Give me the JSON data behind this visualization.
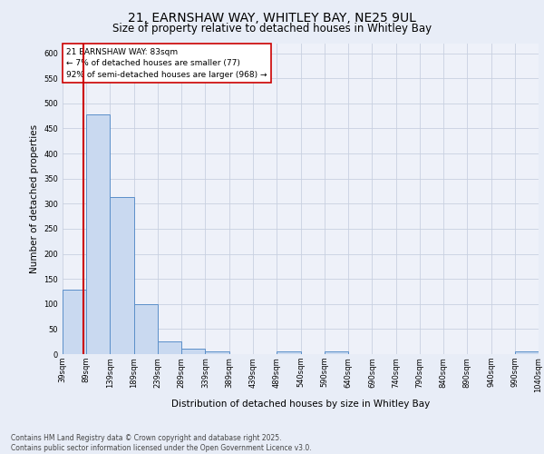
{
  "title_line1": "21, EARNSHAW WAY, WHITLEY BAY, NE25 9UL",
  "title_line2": "Size of property relative to detached houses in Whitley Bay",
  "xlabel": "Distribution of detached houses by size in Whitley Bay",
  "ylabel": "Number of detached properties",
  "footer_line1": "Contains HM Land Registry data © Crown copyright and database right 2025.",
  "footer_line2": "Contains public sector information licensed under the Open Government Licence v3.0.",
  "annotation_line1": "21 EARNSHAW WAY: 83sqm",
  "annotation_line2": "← 7% of detached houses are smaller (77)",
  "annotation_line3": "92% of semi-detached houses are larger (968) →",
  "property_size": 83,
  "bar_edges": [
    39,
    89,
    139,
    189,
    239,
    289,
    339,
    389,
    439,
    489,
    540,
    590,
    640,
    690,
    740,
    790,
    840,
    890,
    940,
    990,
    1040
  ],
  "bar_values": [
    128,
    477,
    314,
    99,
    25,
    10,
    5,
    0,
    0,
    5,
    0,
    5,
    0,
    0,
    0,
    0,
    0,
    0,
    0,
    5
  ],
  "bar_color": "#c9d9f0",
  "bar_edge_color": "#5b8fc9",
  "red_line_color": "#cc0000",
  "background_color": "#e8edf7",
  "plot_bg_color": "#eef1f9",
  "grid_color": "#c8d0e0",
  "ylim": [
    0,
    620
  ],
  "yticks": [
    0,
    50,
    100,
    150,
    200,
    250,
    300,
    350,
    400,
    450,
    500,
    550,
    600
  ],
  "title1_fontsize": 10,
  "title2_fontsize": 8.5,
  "ylabel_fontsize": 7.5,
  "xlabel_fontsize": 7.5,
  "tick_fontsize": 6,
  "footer_fontsize": 5.5,
  "annot_fontsize": 6.5
}
